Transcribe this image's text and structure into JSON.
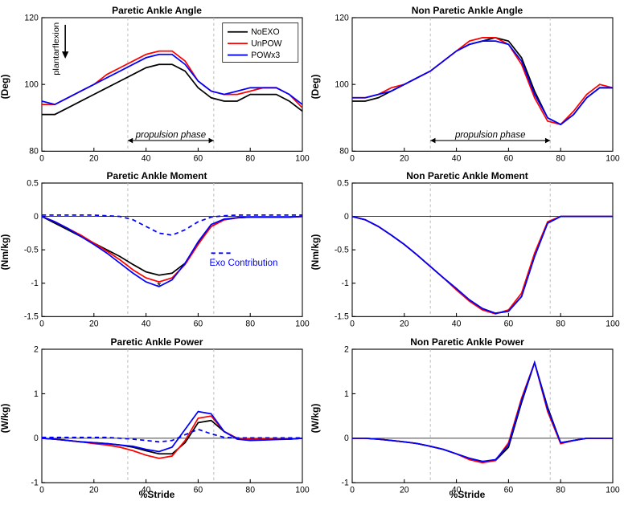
{
  "global": {
    "xlabel": "%Stride",
    "xlim": [
      0,
      100
    ],
    "xticks": [
      0,
      20,
      40,
      60,
      80,
      100
    ],
    "colors": {
      "NoEXO": "#000000",
      "UnPOW": "#ff0000",
      "POWx3": "#0000ff",
      "ExoContribution": "#0000ff",
      "box": "#000000",
      "grid_dash": "#bfbfbf",
      "background": "#ffffff"
    },
    "line_width": 1.6,
    "dash_pattern": "5,4",
    "font": {
      "title_size": 12,
      "label_size": 12,
      "tick_size": 10,
      "title_weight": "bold",
      "label_weight": "bold"
    },
    "propulsion_label": "propulsion phase",
    "plantarflexion_label": "plantarflexion",
    "exo_label": "Exo Contribution",
    "asterisk": "*"
  },
  "legend": {
    "items": [
      {
        "label": "NoEXO",
        "color": "#000000",
        "dash": false
      },
      {
        "label": "UnPOW",
        "color": "#ff0000",
        "dash": false
      },
      {
        "label": "POWx3",
        "color": "#0000ff",
        "dash": false
      }
    ]
  },
  "panels": [
    {
      "id": "paretic-angle",
      "title": "Paretic Ankle Angle",
      "ylabel": "(Deg)",
      "ylim": [
        80,
        120
      ],
      "yticks": [
        80,
        100,
        120
      ],
      "propulsion": [
        33,
        66
      ],
      "show_plantarflexion_arrow": true,
      "show_legend": true,
      "show_propulsion_label": true,
      "x": [
        0,
        5,
        10,
        15,
        20,
        25,
        30,
        35,
        40,
        45,
        50,
        55,
        60,
        65,
        70,
        75,
        80,
        85,
        90,
        95,
        100
      ],
      "series": {
        "NoEXO": [
          91,
          91,
          93,
          95,
          97,
          99,
          101,
          103,
          105,
          106,
          106,
          104,
          99,
          96,
          95,
          95,
          97,
          97,
          97,
          95,
          92
        ],
        "UnPOW": [
          94,
          94,
          96,
          98,
          100,
          103,
          105,
          107,
          109,
          110,
          110,
          107,
          101,
          98,
          97,
          97,
          98,
          99,
          99,
          97,
          93
        ],
        "POWx3": [
          95,
          94,
          96,
          98,
          100,
          102,
          104,
          106,
          108,
          109,
          109,
          106,
          101,
          98,
          97,
          98,
          99,
          99,
          99,
          97,
          94
        ]
      }
    },
    {
      "id": "nonparetic-angle",
      "title": "Non Paretic Ankle Angle",
      "ylabel": "(Deg)",
      "ylim": [
        80,
        120
      ],
      "yticks": [
        80,
        100,
        120
      ],
      "propulsion": [
        30,
        76
      ],
      "show_propulsion_label": true,
      "x": [
        0,
        5,
        10,
        15,
        20,
        25,
        30,
        35,
        40,
        45,
        50,
        55,
        60,
        65,
        70,
        75,
        80,
        85,
        90,
        95,
        100
      ],
      "series": {
        "NoEXO": [
          95,
          95,
          96,
          98,
          100,
          102,
          104,
          107,
          110,
          112,
          113,
          114,
          113,
          108,
          98,
          90,
          88,
          91,
          96,
          99,
          99
        ],
        "UnPOW": [
          96,
          96,
          97,
          99,
          100,
          102,
          104,
          107,
          110,
          113,
          114,
          114,
          112,
          106,
          96,
          89,
          88,
          92,
          97,
          100,
          99
        ],
        "POWx3": [
          96,
          96,
          97,
          98,
          100,
          102,
          104,
          107,
          110,
          112,
          113,
          113,
          112,
          107,
          97,
          90,
          88,
          91,
          96,
          99,
          99
        ]
      }
    },
    {
      "id": "paretic-moment",
      "title": "Paretic Ankle Moment",
      "ylabel": "(Nm/kg)",
      "ylim": [
        -1.5,
        0.5
      ],
      "yticks": [
        -1.5,
        -1,
        -0.5,
        0,
        0.5
      ],
      "propulsion": [
        33,
        66
      ],
      "zero_line": true,
      "show_exo_label": true,
      "asterisk_at": [
        45,
        -1.1
      ],
      "x": [
        0,
        5,
        10,
        15,
        20,
        25,
        30,
        35,
        40,
        45,
        50,
        55,
        60,
        65,
        70,
        75,
        80,
        85,
        90,
        95,
        100
      ],
      "series": {
        "NoEXO": [
          0,
          -0.1,
          -0.2,
          -0.3,
          -0.4,
          -0.5,
          -0.6,
          -0.72,
          -0.83,
          -0.88,
          -0.85,
          -0.7,
          -0.4,
          -0.15,
          -0.05,
          -0.02,
          -0.01,
          -0.01,
          -0.01,
          -0.01,
          0
        ],
        "UnPOW": [
          0,
          -0.08,
          -0.18,
          -0.28,
          -0.4,
          -0.52,
          -0.65,
          -0.8,
          -0.92,
          -0.98,
          -0.92,
          -0.72,
          -0.42,
          -0.15,
          -0.05,
          -0.02,
          -0.01,
          -0.01,
          -0.01,
          -0.01,
          0
        ],
        "POWx3": [
          0,
          -0.08,
          -0.18,
          -0.3,
          -0.42,
          -0.55,
          -0.7,
          -0.85,
          -0.98,
          -1.05,
          -0.95,
          -0.7,
          -0.38,
          -0.12,
          -0.04,
          -0.02,
          -0.01,
          -0.01,
          -0.01,
          -0.01,
          0
        ],
        "Exo": [
          0.02,
          0.02,
          0.02,
          0.02,
          0.02,
          0.01,
          0,
          -0.05,
          -0.15,
          -0.25,
          -0.28,
          -0.2,
          -0.08,
          -0.01,
          0.01,
          0.02,
          0.02,
          0.02,
          0.02,
          0.02,
          0.02
        ]
      }
    },
    {
      "id": "nonparetic-moment",
      "title": "Non Paretic Ankle Moment",
      "ylabel": "(Nm/kg)",
      "ylim": [
        -1.5,
        0.5
      ],
      "yticks": [
        -1.5,
        -1,
        -0.5,
        0,
        0.5
      ],
      "propulsion": [
        30,
        76
      ],
      "zero_line": true,
      "x": [
        0,
        5,
        10,
        15,
        20,
        25,
        30,
        35,
        40,
        45,
        50,
        55,
        60,
        65,
        70,
        75,
        80,
        85,
        90,
        95,
        100
      ],
      "series": {
        "NoEXO": [
          0,
          -0.05,
          -0.15,
          -0.28,
          -0.42,
          -0.58,
          -0.75,
          -0.92,
          -1.08,
          -1.25,
          -1.38,
          -1.45,
          -1.42,
          -1.2,
          -0.6,
          -0.1,
          0,
          0,
          0,
          0,
          0
        ],
        "UnPOW": [
          0,
          -0.05,
          -0.15,
          -0.28,
          -0.42,
          -0.58,
          -0.75,
          -0.92,
          -1.1,
          -1.27,
          -1.4,
          -1.46,
          -1.4,
          -1.15,
          -0.55,
          -0.08,
          0,
          0,
          0,
          0,
          0
        ],
        "POWx3": [
          0,
          -0.05,
          -0.15,
          -0.28,
          -0.42,
          -0.58,
          -0.75,
          -0.92,
          -1.08,
          -1.25,
          -1.38,
          -1.45,
          -1.42,
          -1.2,
          -0.6,
          -0.1,
          0,
          0,
          0,
          0,
          0
        ]
      }
    },
    {
      "id": "paretic-power",
      "title": "Paretic Ankle Power",
      "ylabel": "(W/kg)",
      "ylim": [
        -1,
        2
      ],
      "yticks": [
        -1,
        0,
        1,
        2
      ],
      "propulsion": [
        33,
        66
      ],
      "zero_line": true,
      "show_xlabel": true,
      "x": [
        0,
        5,
        10,
        15,
        20,
        25,
        30,
        35,
        40,
        45,
        50,
        55,
        60,
        65,
        70,
        75,
        80,
        85,
        90,
        95,
        100
      ],
      "series": {
        "NoEXO": [
          0,
          -0.02,
          -0.05,
          -0.08,
          -0.1,
          -0.12,
          -0.15,
          -0.2,
          -0.28,
          -0.35,
          -0.35,
          -0.1,
          0.35,
          0.4,
          0.15,
          0,
          -0.02,
          -0.02,
          -0.02,
          -0.02,
          0
        ],
        "UnPOW": [
          0,
          -0.02,
          -0.05,
          -0.08,
          -0.12,
          -0.15,
          -0.2,
          -0.28,
          -0.38,
          -0.45,
          -0.4,
          -0.05,
          0.45,
          0.5,
          0.15,
          0,
          -0.02,
          -0.02,
          -0.02,
          -0.02,
          0
        ],
        "POWx3": [
          0,
          -0.02,
          -0.05,
          -0.08,
          -0.1,
          -0.12,
          -0.15,
          -0.18,
          -0.25,
          -0.3,
          -0.2,
          0.2,
          0.6,
          0.55,
          0.15,
          -0.02,
          -0.05,
          -0.04,
          -0.03,
          -0.02,
          0
        ],
        "Exo": [
          0.02,
          0.02,
          0.02,
          0.02,
          0.02,
          0.02,
          0,
          -0.02,
          -0.05,
          -0.08,
          -0.05,
          0.08,
          0.2,
          0.1,
          0.02,
          0.01,
          0.01,
          0.01,
          0.01,
          0.01,
          0.01
        ]
      }
    },
    {
      "id": "nonparetic-power",
      "title": "Non Paretic Ankle Power",
      "ylabel": "(W/kg)",
      "ylim": [
        -1,
        2
      ],
      "yticks": [
        -1,
        0,
        1,
        2
      ],
      "propulsion": [
        30,
        76
      ],
      "zero_line": true,
      "show_xlabel": true,
      "x": [
        0,
        5,
        10,
        15,
        20,
        25,
        30,
        35,
        40,
        45,
        50,
        55,
        60,
        65,
        70,
        75,
        80,
        85,
        90,
        95,
        100
      ],
      "series": {
        "NoEXO": [
          0,
          0,
          -0.02,
          -0.05,
          -0.08,
          -0.12,
          -0.18,
          -0.25,
          -0.35,
          -0.45,
          -0.52,
          -0.5,
          -0.2,
          0.8,
          1.7,
          0.7,
          -0.1,
          -0.05,
          0,
          0,
          0
        ],
        "UnPOW": [
          0,
          0,
          -0.02,
          -0.05,
          -0.08,
          -0.12,
          -0.18,
          -0.25,
          -0.35,
          -0.48,
          -0.55,
          -0.5,
          -0.1,
          0.9,
          1.7,
          0.6,
          -0.12,
          -0.05,
          0,
          0,
          0
        ],
        "POWx3": [
          0,
          0,
          -0.02,
          -0.05,
          -0.08,
          -0.12,
          -0.18,
          -0.25,
          -0.35,
          -0.45,
          -0.52,
          -0.48,
          -0.15,
          0.85,
          1.7,
          0.65,
          -0.1,
          -0.05,
          0,
          0,
          0
        ]
      }
    }
  ]
}
